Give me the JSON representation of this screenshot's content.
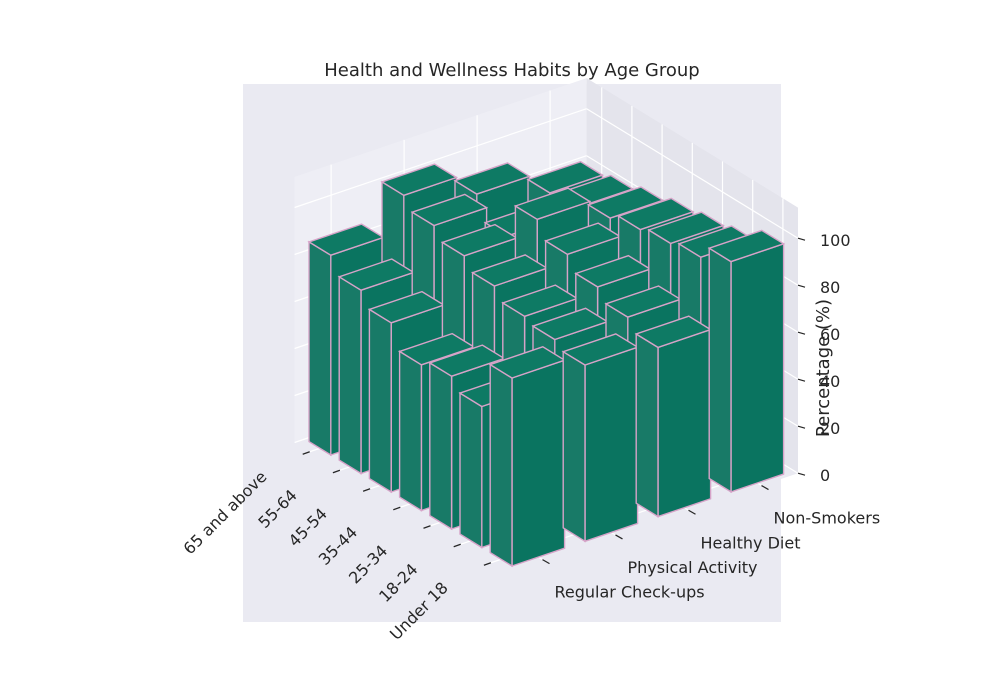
{
  "chart_data": {
    "type": "bar3d",
    "title": "Health and Wellness Habits by Age Group",
    "xlabel": "",
    "ylabel": "",
    "zlabel": "Percentage (%)",
    "age_groups": [
      "Under 18",
      "18-24",
      "25-34",
      "35-44",
      "45-54",
      "55-64",
      "65 and above"
    ],
    "habits": [
      "Regular Check-ups",
      "Physical Activity",
      "Healthy Diet",
      "Non-Smokers"
    ],
    "z_ticks": [
      "0",
      "20",
      "40",
      "60",
      "80",
      "100"
    ],
    "zlim": [
      0,
      100
    ],
    "values": [
      [
        80,
        75,
        72,
        98
      ],
      [
        60,
        78,
        77,
        92
      ],
      [
        65,
        80,
        82,
        90
      ],
      [
        62,
        85,
        88,
        88
      ],
      [
        72,
        90,
        95,
        85
      ],
      [
        78,
        95,
        80,
        82
      ],
      [
        85,
        100,
        90,
        80
      ]
    ],
    "bar_color": "#006e58",
    "edge_color": "#d6a3c8",
    "pane_color": "#eaeaf2",
    "grid": true
  }
}
